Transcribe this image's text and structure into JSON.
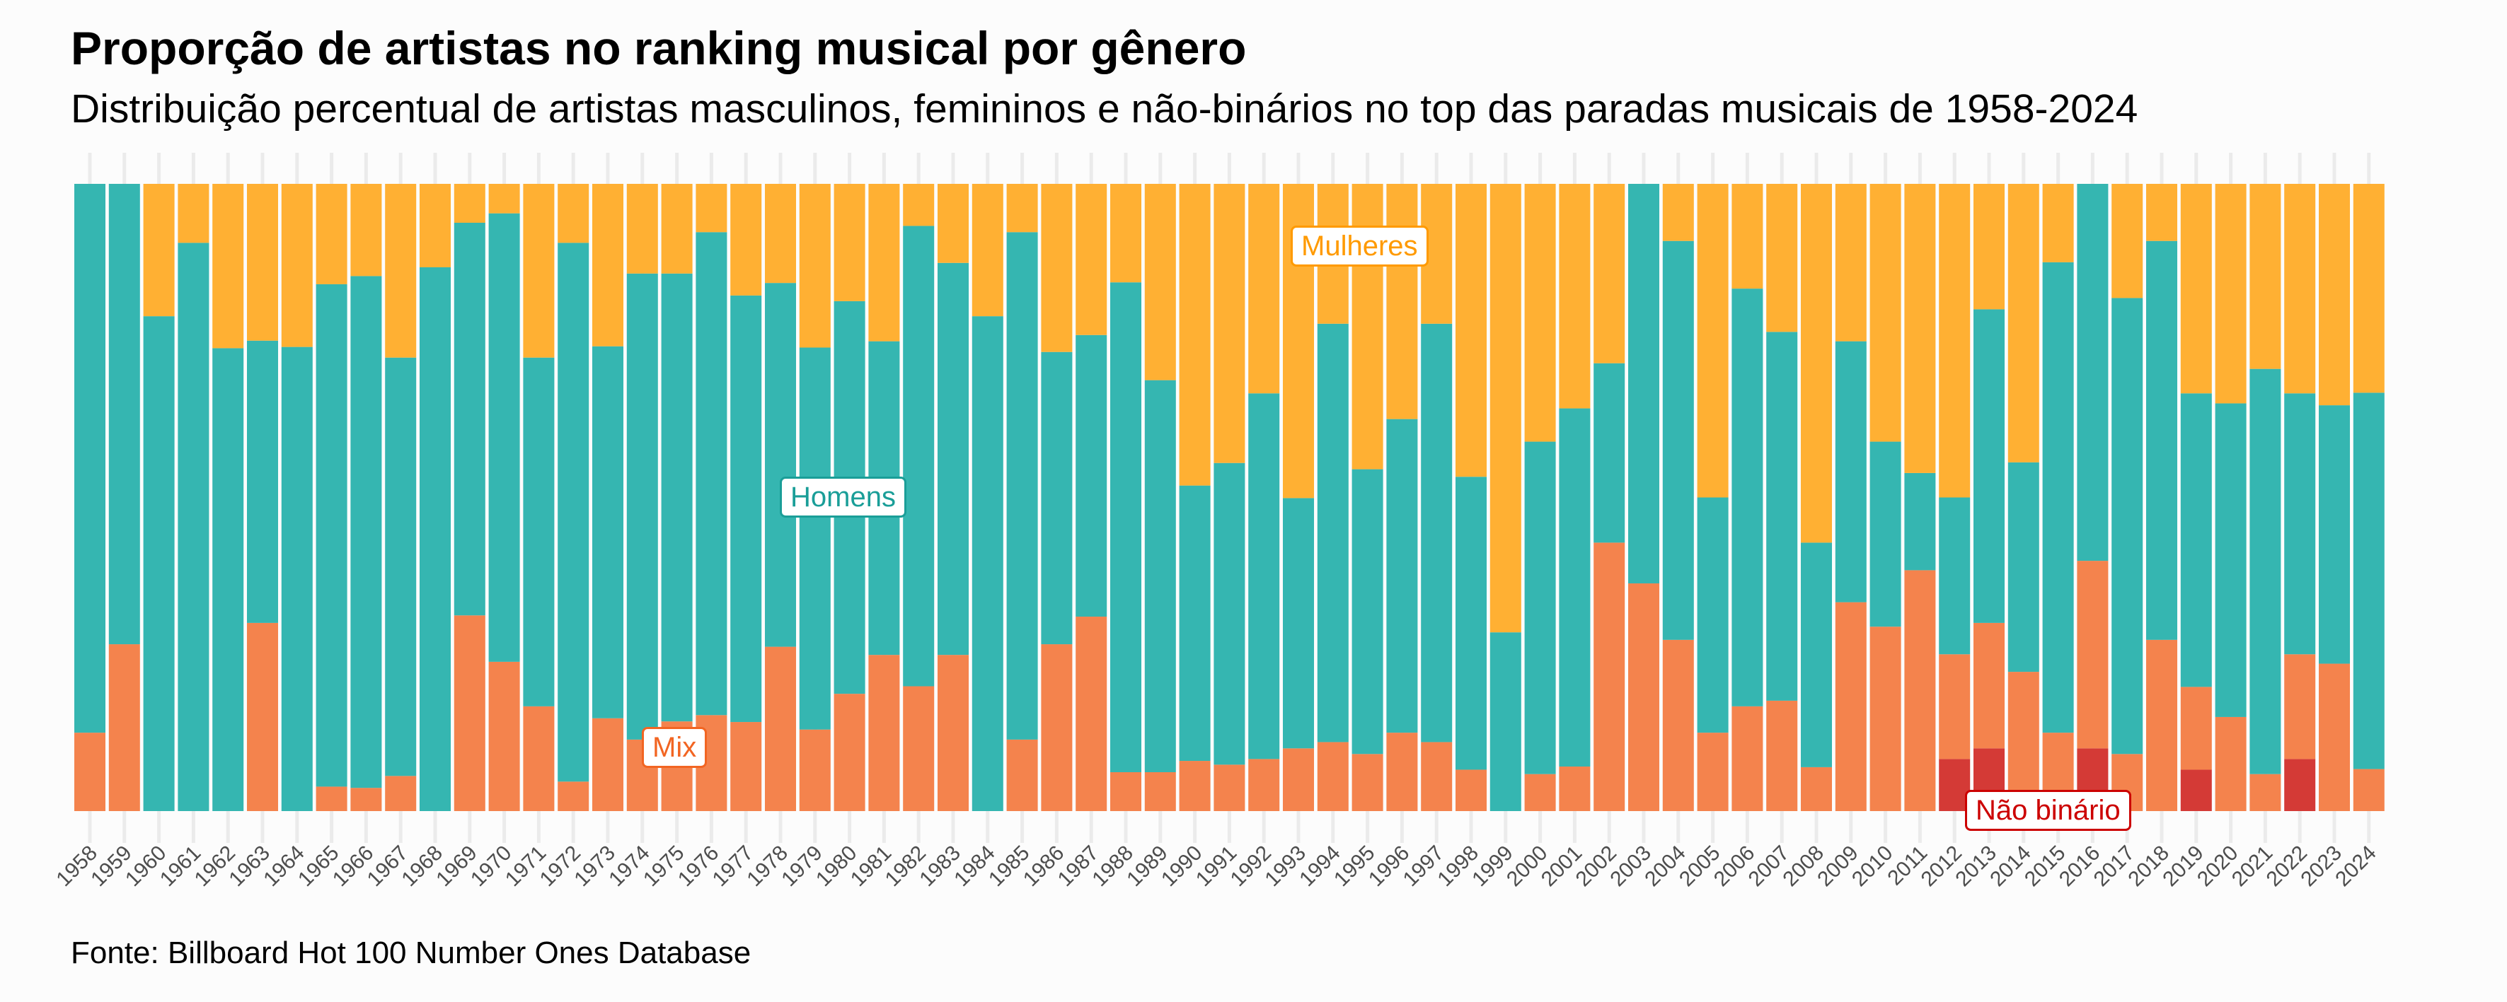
{
  "title": "Proporção de artistas no ranking musical por gênero",
  "subtitle": "Distribuição percentual de artistas masculinos, femininos e não-binários no top das paradas musicais de 1958-2024",
  "caption": "Fonte: Billboard Hot 100 Number Ones Database",
  "colors": {
    "homens": "#35b6b1",
    "mulheres": "#ffb033",
    "mix": "#f4834d",
    "nao_binario": "#d43a36",
    "label_homens": "#1a9e98",
    "label_mulheres": "#ff9a00",
    "label_mix": "#f26522",
    "label_nao_binario": "#cc0000"
  },
  "chart_data": {
    "type": "bar",
    "stacked": "percent",
    "title": "Proporção de artistas no ranking musical por gênero",
    "subtitle": "Distribuição percentual de artistas masculinos, femininos e não-binários no top das paradas musicais de 1958-2024",
    "xlabel": "",
    "ylabel": "",
    "ylim": [
      0,
      100
    ],
    "grid": "vertical",
    "legend": "direct labels on bars",
    "annotations": [
      {
        "text": "Homens",
        "series": "Homens",
        "near": "1978-1980"
      },
      {
        "text": "Mulheres",
        "series": "Mulheres",
        "near": "1993-1995"
      },
      {
        "text": "Mix",
        "series": "Mix",
        "near": "1974-1975"
      },
      {
        "text": "Não binário",
        "series": "Não binário",
        "near": "2012-2016"
      }
    ],
    "categories": [
      "1958",
      "1959",
      "1960",
      "1961",
      "1962",
      "1963",
      "1964",
      "1965",
      "1966",
      "1967",
      "1968",
      "1969",
      "1970",
      "1971",
      "1972",
      "1973",
      "1974",
      "1975",
      "1976",
      "1977",
      "1978",
      "1979",
      "1980",
      "1981",
      "1982",
      "1983",
      "1984",
      "1985",
      "1986",
      "1987",
      "1988",
      "1989",
      "1990",
      "1991",
      "1992",
      "1993",
      "1994",
      "1995",
      "1996",
      "1997",
      "1998",
      "1999",
      "2000",
      "2001",
      "2002",
      "2003",
      "2004",
      "2005",
      "2006",
      "2007",
      "2008",
      "2009",
      "2010",
      "2011",
      "2012",
      "2013",
      "2014",
      "2015",
      "2016",
      "2017",
      "2018",
      "2019",
      "2020",
      "2021",
      "2022",
      "2023",
      "2024"
    ],
    "series": [
      {
        "name": "Não binário",
        "values": [
          0,
          0,
          0,
          0,
          0,
          0,
          0,
          0,
          0,
          0,
          0,
          0,
          0,
          0,
          0,
          0,
          0,
          0,
          0,
          0,
          0,
          0,
          0,
          0,
          0,
          0,
          0,
          0,
          0,
          0,
          0,
          0,
          0,
          0,
          0,
          0,
          0,
          0,
          0,
          0,
          0,
          0,
          0,
          0,
          0,
          0,
          0,
          0,
          0,
          0,
          0,
          0,
          0,
          0,
          8.3,
          10.0,
          0,
          0,
          10.0,
          0,
          0,
          6.6,
          0,
          0,
          8.3,
          0,
          0
        ]
      },
      {
        "name": "Mix",
        "values": [
          12.5,
          26.6,
          0,
          0,
          0,
          30.0,
          0,
          3.9,
          3.7,
          5.6,
          0,
          31.2,
          23.8,
          16.7,
          4.7,
          14.8,
          11.4,
          14.3,
          15.3,
          14.2,
          26.2,
          13.0,
          18.7,
          24.9,
          19.9,
          24.9,
          0,
          11.4,
          26.6,
          31.0,
          6.2,
          6.2,
          8.0,
          7.4,
          8.3,
          10.0,
          11.0,
          9.1,
          12.5,
          11.0,
          6.6,
          0,
          5.9,
          7.1,
          42.8,
          36.3,
          27.3,
          12.5,
          16.7,
          17.6,
          7.0,
          33.3,
          29.4,
          38.4,
          16.7,
          20.0,
          22.2,
          12.5,
          29.9,
          9.1,
          27.3,
          13.2,
          15.0,
          5.9,
          16.7,
          23.5,
          6.7
        ]
      },
      {
        "name": "Homens",
        "values": [
          87.5,
          73.4,
          78.9,
          90.6,
          73.8,
          45.0,
          74.0,
          80.1,
          81.6,
          66.7,
          86.7,
          62.6,
          71.5,
          55.6,
          85.9,
          59.3,
          74.3,
          71.4,
          77.0,
          68.0,
          58.0,
          60.9,
          62.6,
          50.0,
          73.4,
          62.5,
          78.9,
          80.9,
          46.6,
          44.9,
          78.1,
          62.5,
          43.9,
          48.1,
          58.3,
          39.9,
          66.7,
          45.4,
          50.0,
          66.7,
          46.7,
          28.5,
          53.0,
          57.1,
          28.6,
          63.7,
          63.6,
          37.5,
          66.6,
          58.8,
          35.8,
          41.6,
          29.5,
          15.5,
          25.0,
          50.0,
          33.4,
          75.0,
          60.1,
          72.7,
          63.6,
          46.8,
          50.0,
          64.6,
          41.6,
          41.2,
          60.0
        ]
      },
      {
        "name": "Mulheres",
        "values": [
          0,
          0,
          21.1,
          9.4,
          26.2,
          25.0,
          26.0,
          16.0,
          14.7,
          27.7,
          13.3,
          6.2,
          4.7,
          27.7,
          9.4,
          25.9,
          14.3,
          14.3,
          7.7,
          17.8,
          15.8,
          26.1,
          18.7,
          25.1,
          6.7,
          12.6,
          21.1,
          7.7,
          26.8,
          24.1,
          15.7,
          31.3,
          48.1,
          44.5,
          33.4,
          50.1,
          22.3,
          45.5,
          37.5,
          22.3,
          46.7,
          71.5,
          41.1,
          35.8,
          28.6,
          0,
          9.1,
          50.0,
          16.7,
          23.6,
          57.2,
          25.1,
          41.1,
          46.1,
          50.0,
          20.0,
          44.4,
          12.5,
          0,
          18.2,
          9.1,
          33.4,
          35.0,
          29.5,
          33.4,
          35.3,
          33.3
        ]
      }
    ]
  }
}
